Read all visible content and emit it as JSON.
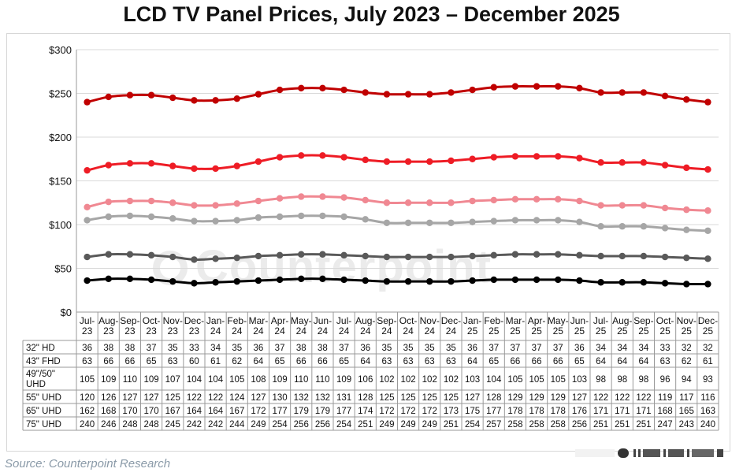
{
  "title": "LCD TV Panel Prices, July 2023 – December 2025",
  "source": "Source: Counterpoint Research",
  "watermark": "Counterpoint",
  "chart_data": {
    "type": "line",
    "title": "LCD TV Panel Prices, July 2023 – December 2025",
    "categories": [
      [
        "Jul-",
        "23"
      ],
      [
        "Aug-",
        "23"
      ],
      [
        "Sep-",
        "23"
      ],
      [
        "Oct-",
        "23"
      ],
      [
        "Nov-",
        "23"
      ],
      [
        "Dec-",
        "23"
      ],
      [
        "Jan-",
        "24"
      ],
      [
        "Feb-",
        "24"
      ],
      [
        "Mar-",
        "24"
      ],
      [
        "Apr-",
        "24"
      ],
      [
        "May-",
        "24"
      ],
      [
        "Jun-",
        "24"
      ],
      [
        "Jul-",
        "24"
      ],
      [
        "Aug-",
        "24"
      ],
      [
        "Sep-",
        "24"
      ],
      [
        "Oct-",
        "24"
      ],
      [
        "Nov-",
        "24"
      ],
      [
        "Dec-",
        "24"
      ],
      [
        "Jan-",
        "25"
      ],
      [
        "Feb-",
        "25"
      ],
      [
        "Mar-",
        "25"
      ],
      [
        "Apr-",
        "25"
      ],
      [
        "May-",
        "25"
      ],
      [
        "Jun-",
        "25"
      ],
      [
        "Jul-",
        "25"
      ],
      [
        "Aug-",
        "25"
      ],
      [
        "Sep-",
        "25"
      ],
      [
        "Oct-",
        "25"
      ],
      [
        "Nov-",
        "25"
      ],
      [
        "Dec-",
        "25"
      ]
    ],
    "y_ticks": [
      "$0",
      "$50",
      "$100",
      "$150",
      "$200",
      "$250",
      "$300"
    ],
    "ylim": [
      0,
      300
    ],
    "grid": true,
    "series": [
      {
        "name": "32\" HD",
        "lines": [
          "32\" HD"
        ],
        "color": "#000000",
        "values": [
          36,
          38,
          38,
          37,
          35,
          33,
          34,
          35,
          36,
          37,
          38,
          38,
          37,
          36,
          35,
          35,
          35,
          35,
          36,
          37,
          37,
          37,
          37,
          36,
          34,
          34,
          34,
          33,
          32,
          32
        ]
      },
      {
        "name": "43\" FHD",
        "lines": [
          "43\" FHD"
        ],
        "color": "#595959",
        "values": [
          63,
          66,
          66,
          65,
          63,
          60,
          61,
          62,
          64,
          65,
          66,
          66,
          65,
          64,
          63,
          63,
          63,
          63,
          64,
          65,
          66,
          66,
          66,
          65,
          64,
          64,
          64,
          63,
          62,
          61
        ]
      },
      {
        "name": "49\"/50\" UHD",
        "lines": [
          "49\"/50\"",
          "UHD"
        ],
        "color": "#a6a6a6",
        "values": [
          105,
          109,
          110,
          109,
          107,
          104,
          104,
          105,
          108,
          109,
          110,
          110,
          109,
          106,
          102,
          102,
          102,
          102,
          103,
          104,
          105,
          105,
          105,
          103,
          98,
          98,
          98,
          96,
          94,
          93
        ]
      },
      {
        "name": "55\" UHD",
        "lines": [
          "55\" UHD"
        ],
        "color": "#f08892",
        "values": [
          120,
          126,
          127,
          127,
          125,
          122,
          122,
          124,
          127,
          130,
          132,
          132,
          131,
          128,
          125,
          125,
          125,
          125,
          127,
          128,
          129,
          129,
          129,
          127,
          122,
          122,
          122,
          119,
          117,
          116
        ]
      },
      {
        "name": "65\" UHD",
        "lines": [
          "65\" UHD"
        ],
        "color": "#ee1c25",
        "values": [
          162,
          168,
          170,
          170,
          167,
          164,
          164,
          167,
          172,
          177,
          179,
          179,
          177,
          174,
          172,
          172,
          172,
          173,
          175,
          177,
          178,
          178,
          178,
          176,
          171,
          171,
          171,
          168,
          165,
          163
        ]
      },
      {
        "name": "75\" UHD",
        "lines": [
          "75\" UHD"
        ],
        "color": "#c00000",
        "values": [
          240,
          246,
          248,
          248,
          245,
          242,
          242,
          244,
          249,
          254,
          256,
          256,
          254,
          251,
          249,
          249,
          249,
          251,
          254,
          257,
          258,
          258,
          258,
          256,
          251,
          251,
          251,
          247,
          243,
          240
        ]
      }
    ]
  }
}
